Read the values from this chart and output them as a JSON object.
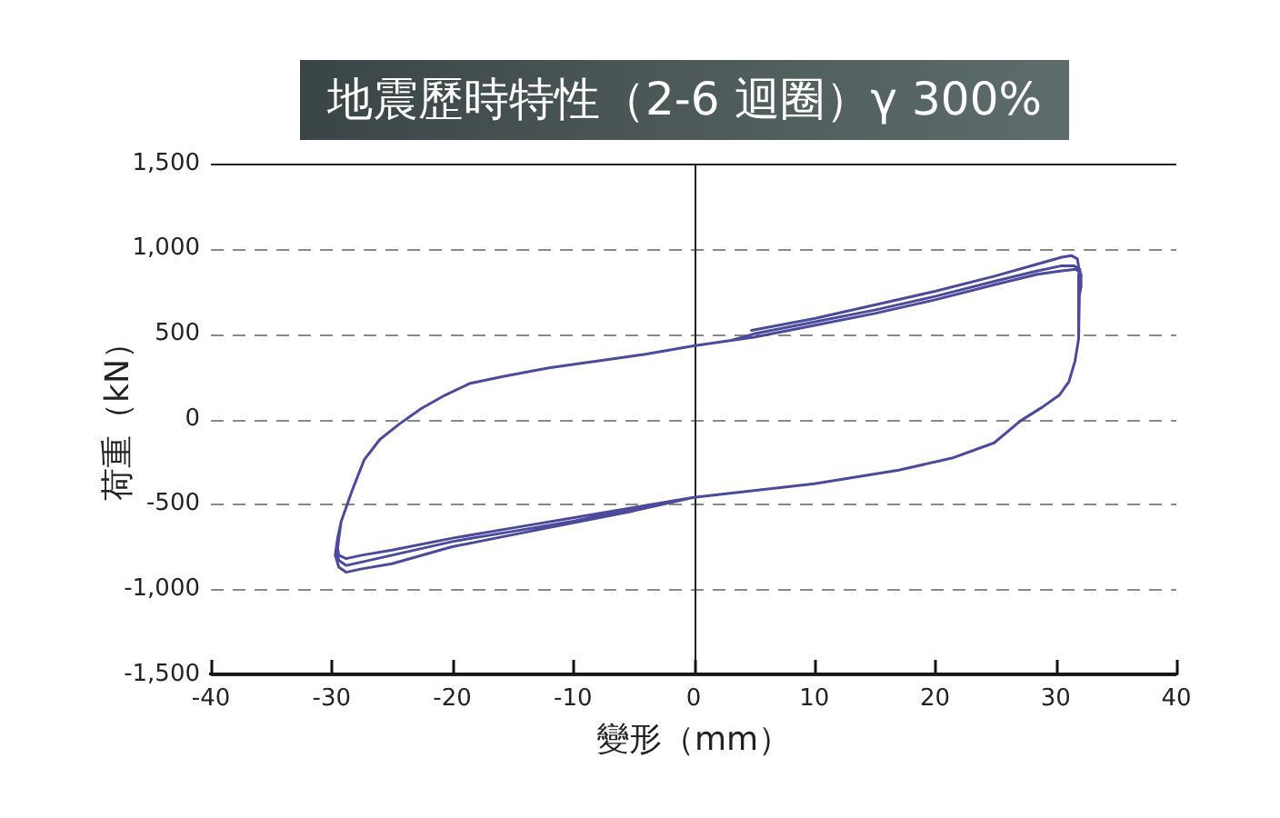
{
  "chart_data": {
    "type": "line",
    "title": "地震歷時特性（2-6 迴圈）γ 300%",
    "xlabel": "變形（mm）",
    "ylabel": "荷重（kN）",
    "series": [
      {
        "color": "#4b4a9b",
        "x": [
          4.8,
          10,
          15,
          20,
          25,
          28.5,
          30.5,
          31.3,
          31.8,
          32,
          31.9,
          31.9,
          31.6,
          31.1,
          30.3,
          28.9,
          27.1,
          24.9,
          21.4,
          17,
          10,
          5,
          0,
          -5,
          -10,
          -15,
          -20,
          -25,
          -27.5,
          -28.8,
          -29.4,
          -29.5,
          -29.4,
          -29.2,
          -28.8,
          -28.3,
          -27.3,
          -26,
          -24.4,
          -22.6,
          -20.6,
          -18.5,
          -15.8,
          -12,
          -8,
          -4,
          0,
          3,
          5,
          10,
          15,
          20,
          25,
          28.5,
          30.5,
          31.5,
          32,
          32.1,
          31.9,
          31.9,
          31.6,
          31.1,
          30.3,
          28.9,
          27.1,
          24.9,
          21.4,
          17,
          10,
          5,
          0,
          -5,
          -10,
          -15,
          -20,
          -25,
          -27.5,
          -28.8,
          -29.4,
          -29.6,
          -29.5,
          -29.2,
          -28.8,
          -28.3,
          -27.3,
          -26,
          -24.4,
          -22.6,
          -20.6,
          -18.5,
          -15.8,
          -12,
          -8,
          -4,
          0,
          3,
          5,
          10,
          15,
          20,
          25,
          28.5,
          30.5,
          31.7,
          32.1,
          32.1,
          31.9,
          31.9,
          31.6,
          31.1,
          30.3,
          28.9,
          27.1,
          24.9,
          21.4,
          17,
          10,
          5,
          0,
          -5,
          -10,
          -15,
          -20,
          -25,
          -27.5,
          -28.8,
          -29.4,
          -29.7,
          -29.5,
          -29.2,
          -28.8,
          -28.3,
          -27.3,
          -26,
          -24.4,
          -22.6,
          -20.6,
          -18.5,
          -15.8,
          -12,
          -8,
          -4,
          0,
          3
        ],
        "values": [
          520,
          590,
          670,
          750,
          840,
          910,
          950,
          960,
          940,
          850,
          700,
          470,
          340,
          220,
          140,
          70,
          -10,
          -140,
          -230,
          -300,
          -380,
          -420,
          -460,
          -520,
          -580,
          -640,
          -700,
          -770,
          -800,
          -820,
          -800,
          -760,
          -700,
          -600,
          -520,
          -420,
          -240,
          -120,
          -30,
          60,
          140,
          210,
          250,
          300,
          340,
          380,
          430,
          460,
          500,
          570,
          640,
          720,
          810,
          870,
          900,
          900,
          880,
          800,
          700,
          470,
          340,
          220,
          140,
          70,
          -10,
          -140,
          -230,
          -300,
          -380,
          -420,
          -460,
          -530,
          -600,
          -660,
          -720,
          -800,
          -840,
          -860,
          -830,
          -780,
          -700,
          -600,
          -520,
          -420,
          -240,
          -120,
          -30,
          60,
          140,
          210,
          250,
          300,
          340,
          380,
          430,
          460,
          480,
          550,
          620,
          700,
          790,
          850,
          870,
          880,
          850,
          780,
          700,
          470,
          340,
          220,
          140,
          70,
          -10,
          -140,
          -230,
          -300,
          -380,
          -420,
          -460,
          -540,
          -610,
          -680,
          -750,
          -850,
          -880,
          -900,
          -870,
          -800,
          -700,
          -600,
          -520,
          -420,
          -240,
          -120,
          -30,
          60,
          140,
          210,
          250,
          300,
          340,
          380,
          430,
          460
        ]
      }
    ],
    "xlim": [
      -40,
      40
    ],
    "xticks": [
      -40,
      -30,
      -20,
      -10,
      0,
      10,
      20,
      30,
      40
    ],
    "ylim": [
      -1500,
      1500
    ],
    "yticks": [
      {
        "value": -1500,
        "label": "-1,500"
      },
      {
        "value": -1000,
        "label": "-1,000"
      },
      -500,
      0,
      500,
      {
        "value": 1000,
        "label": "1,000"
      },
      {
        "value": 1500,
        "label": "1,500"
      }
    ],
    "grid": "y",
    "ref_lines": [
      {
        "axis": "x",
        "value": 0,
        "color": "#222222"
      }
    ]
  }
}
